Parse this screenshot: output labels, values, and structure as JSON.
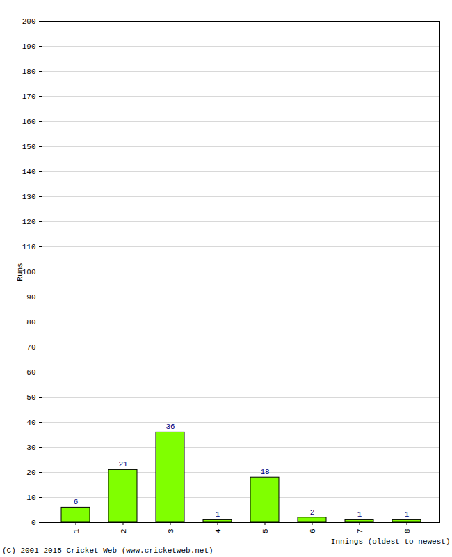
{
  "chart_data": {
    "type": "bar",
    "y_label": "Runs",
    "x_label": "Innings (oldest to newest)",
    "annotations": [
      "(C) 2001-2015 Cricket Web (www.cricketweb.net)"
    ],
    "categories": [
      "1",
      "2",
      "3",
      "4",
      "5",
      "6",
      "7",
      "8"
    ],
    "values": [
      6,
      21,
      36,
      1,
      18,
      2,
      1,
      1
    ],
    "color": "#80ff00",
    "ylim": [
      0,
      200
    ],
    "yticks": [
      0,
      10,
      20,
      30,
      40,
      50,
      60,
      70,
      80,
      90,
      100,
      110,
      120,
      130,
      140,
      150,
      160,
      170,
      180,
      190,
      200
    ],
    "grid": true,
    "data_labels": true
  }
}
